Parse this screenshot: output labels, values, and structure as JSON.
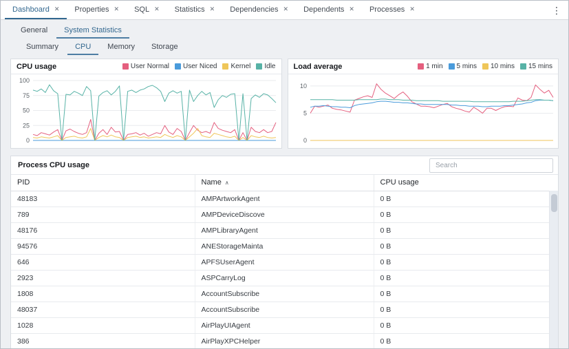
{
  "colors": {
    "accent": "#32678f",
    "user_normal": "#e45f7e",
    "user_niced": "#4a9bdb",
    "kernel": "#efc659",
    "idle": "#57b2a6"
  },
  "tabbar": {
    "menu_icon": "kebab-vertical",
    "close_glyph": "✕",
    "tabs": [
      {
        "label": "Dashboard",
        "active": true
      },
      {
        "label": "Properties",
        "active": false
      },
      {
        "label": "SQL",
        "active": false
      },
      {
        "label": "Statistics",
        "active": false
      },
      {
        "label": "Dependencies",
        "active": false
      },
      {
        "label": "Dependents",
        "active": false
      },
      {
        "label": "Processes",
        "active": false
      }
    ]
  },
  "subtabs": [
    {
      "label": "General",
      "active": false
    },
    {
      "label": "System Statistics",
      "active": true
    }
  ],
  "stat_tabs": [
    {
      "label": "Summary",
      "active": false
    },
    {
      "label": "CPU",
      "active": true
    },
    {
      "label": "Memory",
      "active": false
    },
    {
      "label": "Storage",
      "active": false
    }
  ],
  "chart_data": [
    {
      "type": "line",
      "title": "CPU usage",
      "xlabel": "",
      "ylabel": "",
      "ylim": [
        0,
        100
      ],
      "yticks": [
        0,
        25,
        50,
        75,
        100
      ],
      "grid": true,
      "legend_position": "top-right",
      "series": [
        {
          "name": "User Normal",
          "color": "#e45f7e",
          "values": [
            10,
            8,
            13,
            11,
            9,
            14,
            18,
            0,
            16,
            19,
            15,
            12,
            10,
            13,
            35,
            0,
            12,
            18,
            10,
            22,
            14,
            15,
            0,
            10,
            11,
            13,
            9,
            12,
            7,
            10,
            13,
            11,
            25,
            14,
            10,
            20,
            15,
            0,
            13,
            25,
            17,
            13,
            15,
            12,
            30,
            20,
            17,
            15,
            13,
            18,
            0,
            13,
            0,
            22,
            15,
            13,
            18,
            13,
            15,
            30
          ]
        },
        {
          "name": "User Niced",
          "color": "#4a9bdb",
          "values": [
            0,
            0,
            0,
            0,
            0,
            0,
            0,
            0,
            0,
            0,
            0,
            0,
            0,
            0,
            0,
            0,
            0,
            0,
            0,
            0,
            0,
            0,
            0,
            0,
            0,
            0,
            0,
            0,
            0,
            0,
            0,
            0,
            0,
            0,
            0,
            0,
            0,
            0,
            0,
            0,
            0,
            0,
            0,
            0,
            0,
            0,
            0,
            0,
            0,
            0,
            0,
            0,
            0,
            0,
            0,
            0,
            0,
            0,
            0,
            0
          ]
        },
        {
          "name": "Kernel",
          "color": "#efc659",
          "values": [
            5,
            4,
            6,
            5,
            4,
            6,
            8,
            0,
            5,
            6,
            7,
            5,
            4,
            6,
            20,
            0,
            5,
            8,
            6,
            9,
            6,
            5,
            0,
            5,
            6,
            7,
            5,
            6,
            4,
            5,
            6,
            5,
            10,
            7,
            5,
            8,
            6,
            0,
            6,
            12,
            20,
            8,
            6,
            5,
            12,
            10,
            8,
            6,
            5,
            7,
            0,
            5,
            0,
            8,
            6,
            5,
            7,
            5,
            4,
            5
          ]
        },
        {
          "name": "Idle",
          "color": "#57b2a6",
          "values": [
            84,
            82,
            86,
            80,
            93,
            83,
            78,
            0,
            77,
            76,
            82,
            79,
            75,
            90,
            83,
            0,
            74,
            80,
            83,
            76,
            82,
            91,
            0,
            82,
            84,
            80,
            84,
            86,
            90,
            92,
            88,
            82,
            65,
            79,
            83,
            79,
            82,
            0,
            84,
            65,
            75,
            82,
            76,
            80,
            55,
            68,
            75,
            72,
            77,
            78,
            0,
            78,
            0,
            70,
            76,
            72,
            78,
            76,
            70,
            63
          ]
        }
      ]
    },
    {
      "type": "line",
      "title": "Load average",
      "xlabel": "",
      "ylabel": "",
      "ylim": [
        0,
        11
      ],
      "yticks": [
        0,
        5,
        10
      ],
      "grid": true,
      "legend_position": "top-right",
      "series": [
        {
          "name": "1 min",
          "color": "#e45f7e",
          "values": [
            5.0,
            6.3,
            6.1,
            6.3,
            6.5,
            5.9,
            5.7,
            5.6,
            5.4,
            5.2,
            7.4,
            7.7,
            8.0,
            8.2,
            7.9,
            10.4,
            9.4,
            8.7,
            8.2,
            7.7,
            8.4,
            8.9,
            8.1,
            7.1,
            6.7,
            6.3,
            6.3,
            6.2,
            6.0,
            6.3,
            6.6,
            6.8,
            6.2,
            5.9,
            5.7,
            5.4,
            5.2,
            6.1,
            5.6,
            5.0,
            5.9,
            5.9,
            5.5,
            5.9,
            6.2,
            6.3,
            6.2,
            7.8,
            7.4,
            7.3,
            7.9,
            10.2,
            9.4,
            8.7,
            9.2,
            7.9
          ]
        },
        {
          "name": "5 mins",
          "color": "#4a9bdb",
          "values": [
            6.1,
            6.3,
            6.3,
            6.4,
            6.3,
            6.2,
            6.2,
            6.1,
            6.1,
            6.0,
            6.4,
            6.6,
            6.7,
            6.8,
            6.9,
            7.1,
            7.2,
            7.2,
            7.1,
            7.0,
            7.0,
            6.9,
            6.9,
            6.8,
            6.7,
            6.7,
            6.6,
            6.6,
            6.6,
            6.6,
            6.6,
            6.6,
            6.5,
            6.5,
            6.4,
            6.4,
            6.3,
            6.3,
            6.3,
            6.2,
            6.2,
            6.3,
            6.3,
            6.3,
            6.4,
            6.4,
            6.5,
            6.6,
            6.7,
            6.9,
            7.0,
            7.3,
            7.4,
            7.4,
            7.4,
            7.3
          ]
        },
        {
          "name": "10 mins",
          "color": "#efc659",
          "values": [
            0,
            0,
            0,
            0,
            0,
            0,
            0,
            0,
            0,
            0,
            0,
            0,
            0,
            0,
            0,
            0,
            0,
            0,
            0,
            0,
            0,
            0,
            0,
            0,
            0,
            0,
            0,
            0,
            0,
            0,
            0,
            0,
            0,
            0,
            0,
            0,
            0,
            0,
            0,
            0,
            0,
            0,
            0,
            0,
            0,
            0,
            0,
            0,
            0,
            0,
            0,
            0,
            0,
            0,
            0,
            0
          ]
        },
        {
          "name": "15 mins",
          "color": "#57b2a6",
          "values": [
            7.5,
            7.5,
            7.5,
            7.5,
            7.5,
            7.5,
            7.4,
            7.4,
            7.4,
            7.4,
            7.4,
            7.5,
            7.5,
            7.5,
            7.5,
            7.5,
            7.6,
            7.6,
            7.5,
            7.5,
            7.5,
            7.4,
            7.4,
            7.4,
            7.3,
            7.3,
            7.3,
            7.3,
            7.3,
            7.3,
            7.2,
            7.2,
            7.2,
            7.2,
            7.2,
            7.2,
            7.2,
            7.1,
            7.1,
            7.1,
            7.1,
            7.1,
            7.1,
            7.1,
            7.1,
            7.1,
            7.2,
            7.2,
            7.2,
            7.3,
            7.4,
            7.5,
            7.5,
            7.4,
            7.4,
            7.3
          ]
        }
      ]
    }
  ],
  "process_panel": {
    "title": "Process CPU usage",
    "search_placeholder": "Search",
    "sort_asc_glyph": "∧",
    "columns": [
      {
        "label": "PID",
        "sort": null
      },
      {
        "label": "Name",
        "sort": "asc"
      },
      {
        "label": "CPU usage",
        "sort": null
      }
    ],
    "rows": [
      [
        "48183",
        "AMPArtworkAgent",
        "0 B"
      ],
      [
        "789",
        "AMPDeviceDiscove",
        "0 B"
      ],
      [
        "48176",
        "AMPLibraryAgent",
        "0 B"
      ],
      [
        "94576",
        "ANEStorageMainta",
        "0 B"
      ],
      [
        "646",
        "APFSUserAgent",
        "0 B"
      ],
      [
        "2923",
        "ASPCarryLog",
        "0 B"
      ],
      [
        "1808",
        "AccountSubscribe",
        "0 B"
      ],
      [
        "48037",
        "AccountSubscribe",
        "0 B"
      ],
      [
        "1028",
        "AirPlayUIAgent",
        "0 B"
      ],
      [
        "386",
        "AirPlayXPCHelper",
        "0 B"
      ]
    ]
  }
}
